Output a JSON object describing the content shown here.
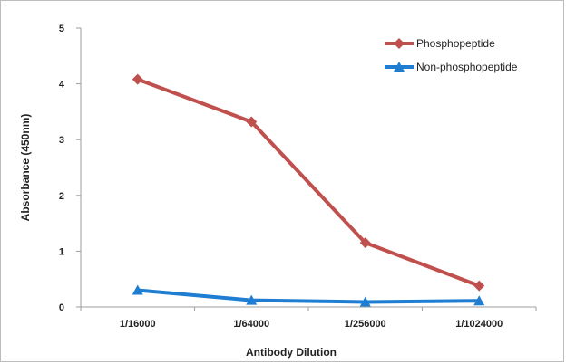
{
  "chart_data": {
    "type": "line",
    "title": "",
    "xlabel": "Antibody Dilution",
    "ylabel": "Absorbance (450nm)",
    "categories": [
      "1/16000",
      "1/64000",
      "1/256000",
      "1/1024000"
    ],
    "ylim": [
      0,
      5
    ],
    "yticks": [
      "0",
      "1",
      "2",
      "3",
      "4",
      "5"
    ],
    "grid": false,
    "legend_position": "top-right",
    "series": [
      {
        "name": "Phosphopeptide",
        "values": [
          4.08,
          3.32,
          1.15,
          0.38
        ],
        "color": "#c0504d",
        "marker": "diamond"
      },
      {
        "name": "Non-phosphopeptide",
        "values": [
          0.3,
          0.12,
          0.09,
          0.11
        ],
        "color": "#1f7ed2",
        "marker": "triangle"
      }
    ]
  }
}
